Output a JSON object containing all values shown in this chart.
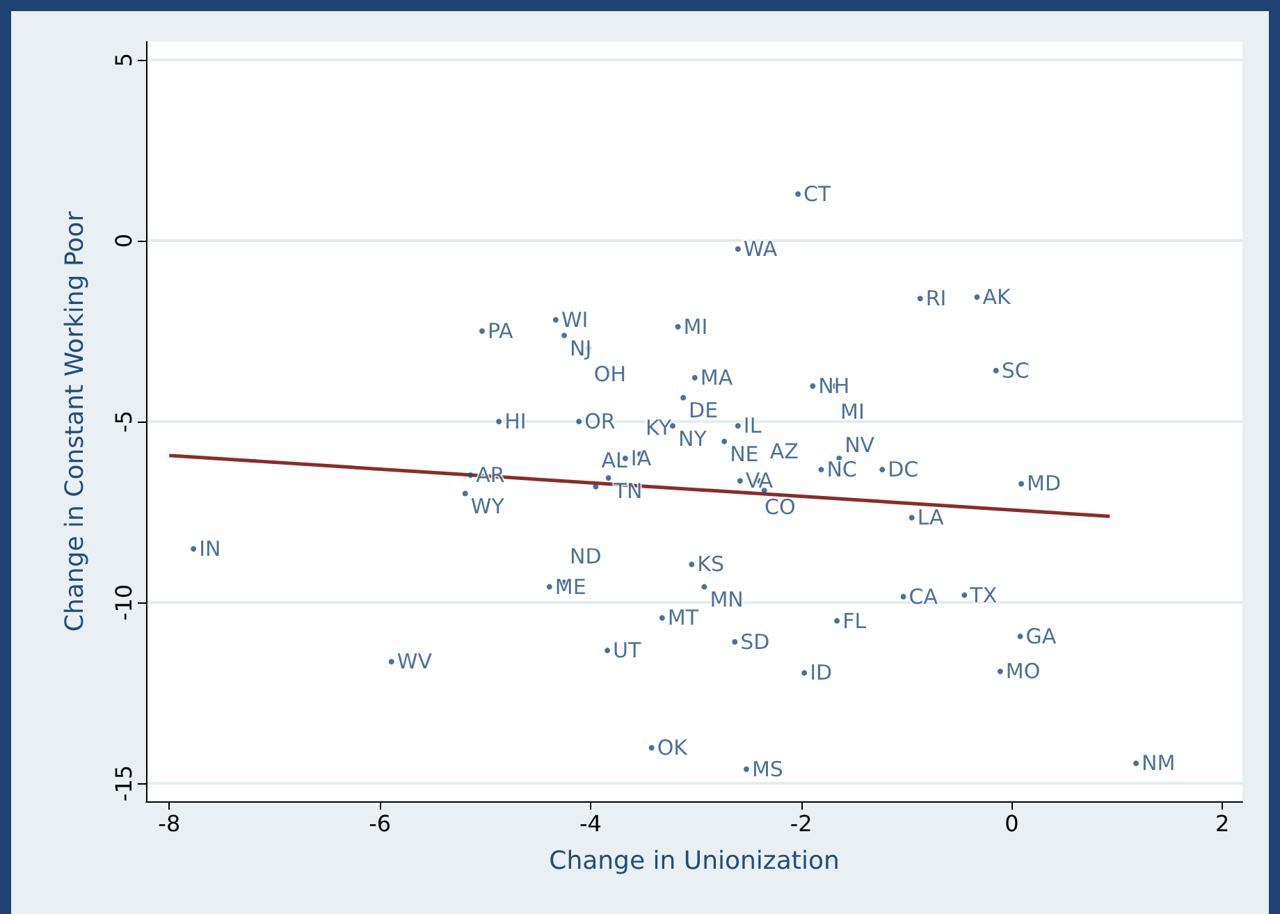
{
  "chart_data": {
    "type": "scatter",
    "xlabel": "Change in Unionization",
    "ylabel": "Change in Constant Working Poor",
    "xlim": [
      -8.22,
      2.19
    ],
    "ylim": [
      -15.5,
      5.5
    ],
    "xticks": [
      -8,
      -6,
      -4,
      -2,
      0,
      2
    ],
    "yticks": [
      -15,
      -10,
      -5,
      0,
      5
    ],
    "grid": "y",
    "series": [
      {
        "color": "#1f4e79",
        "marker": "circle",
        "x": [
          -2.03,
          -2.6,
          -0.87,
          -0.33,
          -4.33,
          -5.03,
          -4.25,
          -4.02,
          -3.17,
          -0.15,
          -3.01,
          -3.12,
          -1.89,
          -1.68,
          -4.87,
          -4.11,
          -3.22,
          -2.6,
          -2.73,
          -3.67,
          -3.53,
          -3.83,
          -3.95,
          -5.14,
          -5.19,
          -2.58,
          -2.4,
          -2.35,
          -1.81,
          -1.64,
          -1.23,
          0.09,
          -0.95,
          -7.77,
          -3.04,
          -2.92,
          -4.39,
          -4.25,
          -1.03,
          -0.45,
          -3.32,
          -1.66,
          0.08,
          -2.63,
          -3.84,
          -5.89,
          -1.97,
          -0.11,
          -3.42,
          -2.52,
          1.18
        ],
        "values": [
          1.29,
          -0.23,
          -1.6,
          -1.56,
          -2.19,
          -2.5,
          -2.62,
          -2.97,
          -2.38,
          -3.59,
          -3.79,
          -4.34,
          -4.02,
          -4.02,
          -5,
          -5,
          -5.12,
          -5.12,
          -5.55,
          -6.02,
          -5.9,
          -6.56,
          -6.8,
          -6.48,
          -6.99,
          -6.64,
          -6.64,
          -6.91,
          -6.33,
          -6.02,
          -6.33,
          -6.72,
          -7.66,
          -8.52,
          -8.95,
          -9.57,
          -9.57,
          -9.45,
          -9.84,
          -9.8,
          -10.43,
          -10.51,
          -10.94,
          -11.09,
          -11.33,
          -11.64,
          -11.95,
          -11.91,
          -14.02,
          -14.61,
          -14.45
        ],
        "value_labels": [
          "CT",
          "WA",
          "RI",
          "AK",
          "WI",
          "PA",
          "NJ",
          "OH",
          "MI",
          "SC",
          "MA",
          "DE",
          "NH",
          "MI",
          "HI",
          "OR",
          "NY",
          "IL",
          "NE",
          "IA",
          "KY",
          "TN",
          "AL",
          "AR",
          "WY",
          "VA",
          "CO",
          "AZ",
          "NC",
          "NV",
          "DC",
          "MD",
          "LA",
          "IN",
          "KS",
          "MN",
          "ME",
          "ND",
          "CA",
          "TX",
          "MT",
          "FL",
          "GA",
          "SD",
          "UT",
          "WV",
          "ID",
          "MO",
          "OK",
          "MS",
          "NM"
        ]
      },
      {
        "type": "line",
        "color": "#8b2b2b",
        "x": [
          -8,
          0.93
        ],
        "values": [
          -5.94,
          -7.62
        ]
      }
    ]
  }
}
